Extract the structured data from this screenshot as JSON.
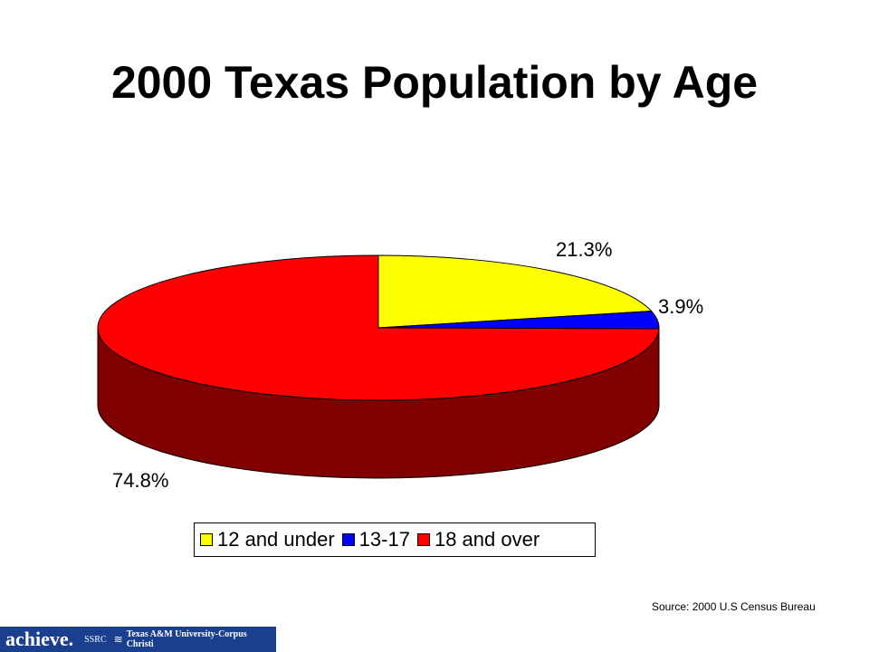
{
  "chart_data": {
    "type": "pie",
    "title": "2000 Texas Population by Age",
    "categories": [
      "12 and under",
      "13-17",
      "18 and over"
    ],
    "values": [
      21.3,
      3.9,
      74.8
    ],
    "data_labels": [
      "21.3%",
      "3.9%",
      "74.8%"
    ],
    "colors": [
      "#ffff00",
      "#0000ff",
      "#ff0000"
    ],
    "side_colors": [
      "#808000",
      "#000080",
      "#800000"
    ],
    "legend_position": "bottom",
    "three_d": true
  },
  "source": "Source: 2000 U.S Census Bureau",
  "footer": {
    "logo": "achieve.",
    "ssrc": "SSRC",
    "university": "Texas A&M University-Corpus Christi",
    "color": "#1a3f8f"
  }
}
